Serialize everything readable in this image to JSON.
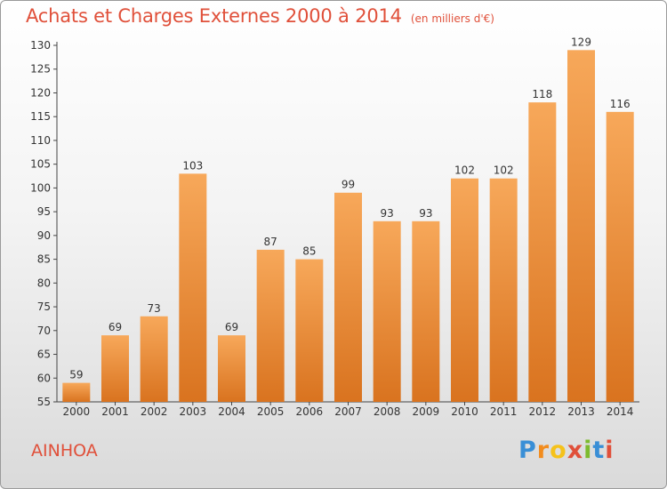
{
  "title": {
    "main": "Achats et Charges Externes 2000 à 2014",
    "unit": "(en milliers d'€)"
  },
  "commune": "AINHOA",
  "logo": {
    "text": "Proxiti",
    "letter_colors": [
      "#3a8fd6",
      "#f28c1e",
      "#f5c21b",
      "#e0503a",
      "#7dbb2e",
      "#3a8fd6",
      "#e0503a"
    ]
  },
  "colors": {
    "title": "#e0503a",
    "bar_light": "#f7a85a",
    "bar_dark": "#d9731f"
  },
  "chart_data": {
    "type": "bar",
    "categories": [
      "2000",
      "2001",
      "2002",
      "2003",
      "2004",
      "2005",
      "2006",
      "2007",
      "2008",
      "2009",
      "2010",
      "2011",
      "2012",
      "2013",
      "2014"
    ],
    "values": [
      59,
      69,
      73,
      103,
      69,
      87,
      85,
      99,
      93,
      93,
      102,
      102,
      118,
      129,
      116
    ],
    "ylim": [
      55,
      130
    ],
    "ytick_step": 5,
    "grid": false,
    "legend": "none"
  }
}
